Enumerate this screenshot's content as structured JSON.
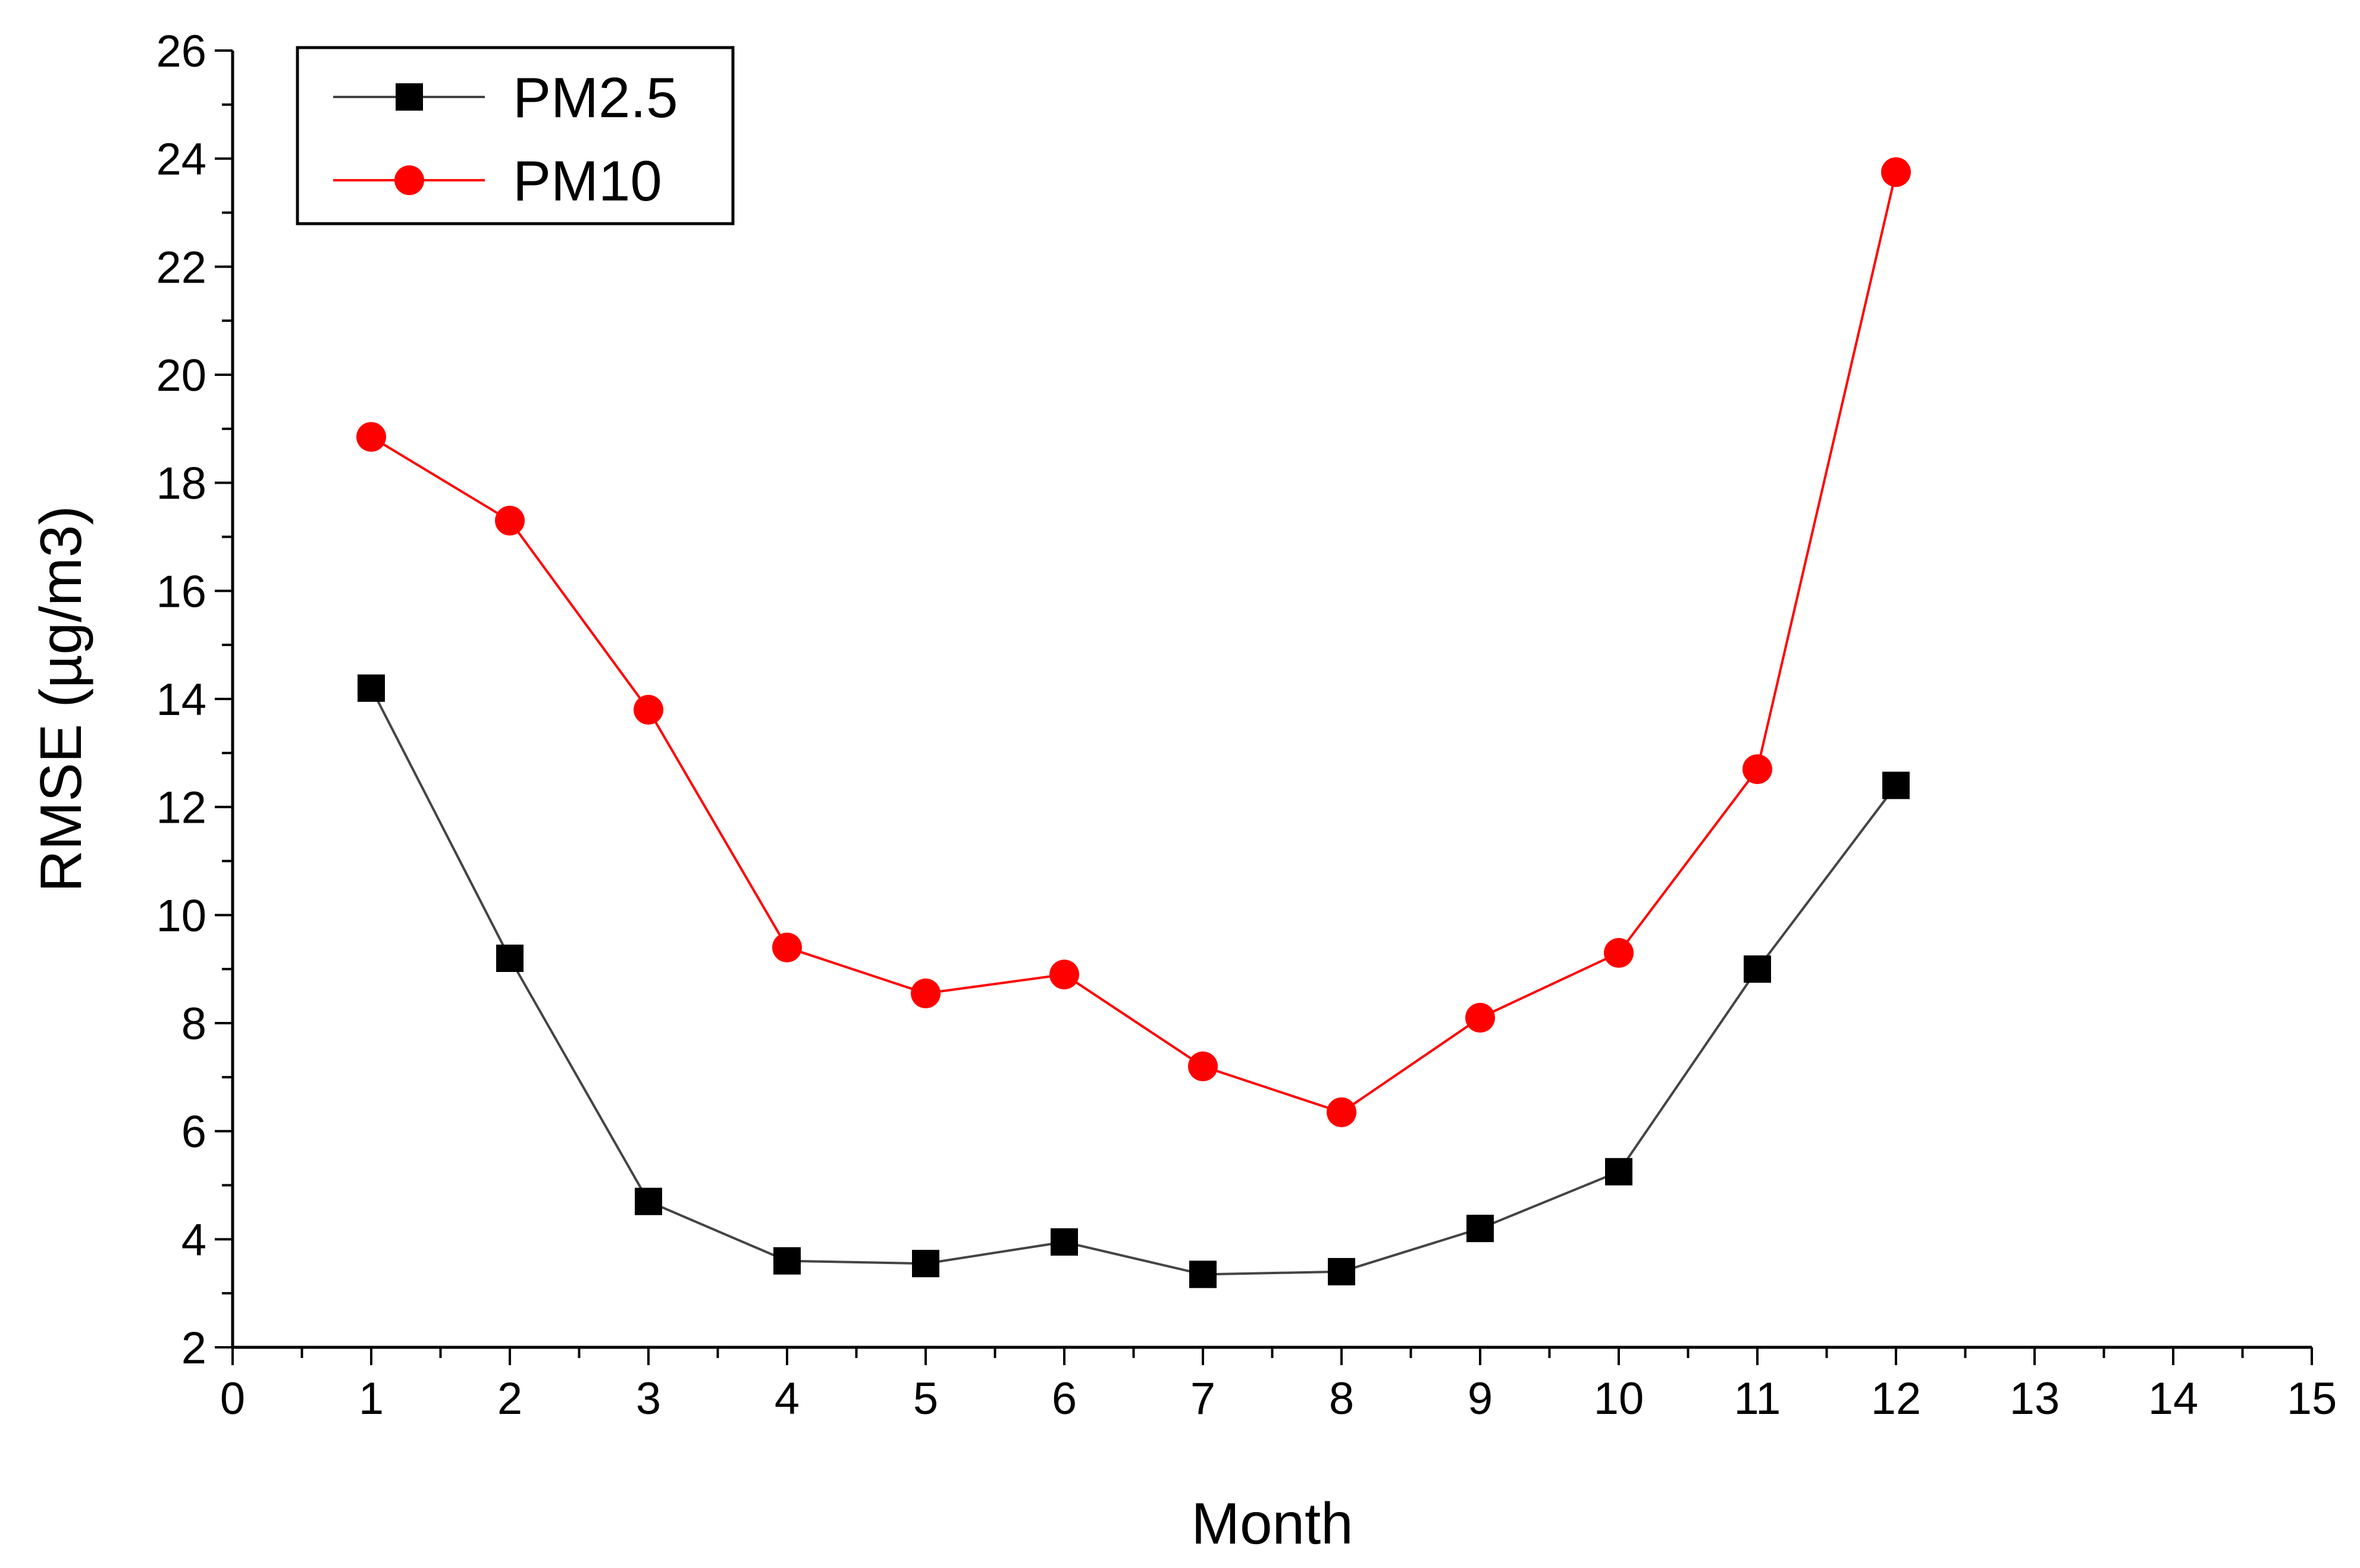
{
  "chart_data": {
    "type": "line",
    "title": "",
    "xlabel": "Month",
    "ylabel": "RMSE (µg/m3)",
    "xlim": [
      0,
      15
    ],
    "ylim": [
      2,
      26
    ],
    "x_ticks": [
      0,
      1,
      2,
      3,
      4,
      5,
      6,
      7,
      8,
      9,
      10,
      11,
      12,
      13,
      14,
      15
    ],
    "y_ticks": [
      2,
      4,
      6,
      8,
      10,
      12,
      14,
      16,
      18,
      20,
      22,
      24,
      26
    ],
    "grid": false,
    "legend_position": "top-left",
    "x": [
      1,
      2,
      3,
      4,
      5,
      6,
      7,
      8,
      9,
      10,
      11,
      12
    ],
    "series": [
      {
        "name": "PM2.5",
        "color": "#000000",
        "line_color": "#444444",
        "marker": "square",
        "values": [
          14.2,
          9.2,
          4.7,
          3.6,
          3.55,
          3.95,
          3.35,
          3.4,
          4.2,
          5.25,
          9.0,
          12.4
        ]
      },
      {
        "name": "PM10",
        "color": "#ff0000",
        "line_color": "#ff0000",
        "marker": "circle",
        "values": [
          18.85,
          17.3,
          13.8,
          9.4,
          8.55,
          8.9,
          7.2,
          6.35,
          8.1,
          9.3,
          12.7,
          23.75
        ]
      }
    ]
  }
}
